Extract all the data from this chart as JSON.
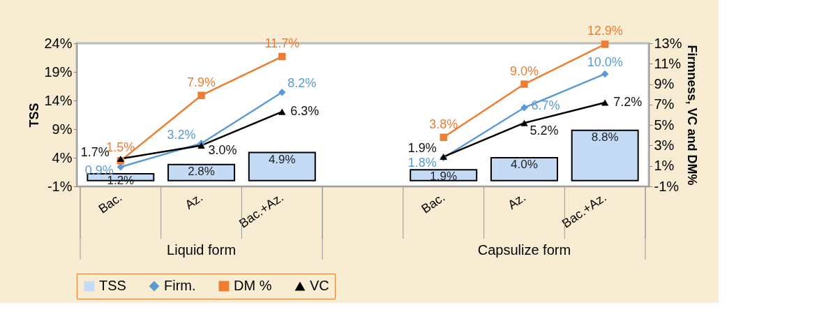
{
  "chart_data": {
    "type": "bar",
    "categories": [
      "Bac.",
      "Az.",
      "Bac.+Az.",
      null,
      "Bac.",
      "Az.",
      "Bac.+Az."
    ],
    "ylabel": "TSS",
    "y2label": "Firmness, VC and DM%",
    "annotations": [
      "Liquid form",
      "Capsulize form"
    ],
    "series": [
      {
        "name": "TSS",
        "color": "#c5daf5",
        "values": [
          1.2,
          2.8,
          4.9,
          null,
          1.9,
          4.0,
          8.8
        ],
        "value_labels": [
          "1.2%",
          "2.8%",
          "4.9%",
          null,
          "1.9%",
          "4.0%",
          "8.8%"
        ]
      },
      {
        "name": "Firm.",
        "type": "line",
        "axis": "y2",
        "marker": "diamond",
        "color": "#5b9bd5",
        "values": [
          0.9,
          3.2,
          8.2,
          null,
          1.8,
          6.7,
          10.0
        ],
        "value_labels": [
          "0.9%",
          "3.2%",
          "8.2%",
          null,
          "1.8%",
          "6.7%",
          "10.0%"
        ]
      },
      {
        "name": "DM %",
        "type": "line",
        "axis": "y2",
        "marker": "square",
        "color": "#ed7d31",
        "values": [
          1.5,
          7.9,
          11.7,
          null,
          3.8,
          9.0,
          12.9
        ],
        "value_labels": [
          "1.5%",
          "7.9%",
          "11.7%",
          null,
          "3.8%",
          "9.0%",
          "12.9%"
        ]
      },
      {
        "name": "VC",
        "type": "line",
        "axis": "y2",
        "marker": "triangle",
        "color": "#000000",
        "values": [
          1.7,
          3.0,
          6.3,
          null,
          1.9,
          5.2,
          7.2
        ],
        "value_labels": [
          "1.7%",
          "3.0%",
          "6.3%",
          null,
          "1.9%",
          "5.2%",
          "7.2%"
        ]
      }
    ],
    "ylim": [
      -1,
      24
    ],
    "yticks": [
      {
        "value": -1,
        "label": "-1%"
      },
      {
        "value": 4,
        "label": "4%"
      },
      {
        "value": 9,
        "label": "9%"
      },
      {
        "value": 14,
        "label": "14%"
      },
      {
        "value": 19,
        "label": "19%"
      },
      {
        "value": 24,
        "label": "24%"
      }
    ],
    "y2lim": [
      -1,
      13
    ],
    "y2ticks": [
      {
        "value": -1,
        "label": "-1%"
      },
      {
        "value": 1,
        "label": "1%"
      },
      {
        "value": 3,
        "label": "3%"
      },
      {
        "value": 5,
        "label": "5%"
      },
      {
        "value": 7,
        "label": "7%"
      },
      {
        "value": 9,
        "label": "9%"
      },
      {
        "value": 11,
        "label": "11%"
      },
      {
        "value": 13,
        "label": "13%"
      }
    ],
    "grid": false,
    "legend": "bottom",
    "line_style": "solid"
  }
}
